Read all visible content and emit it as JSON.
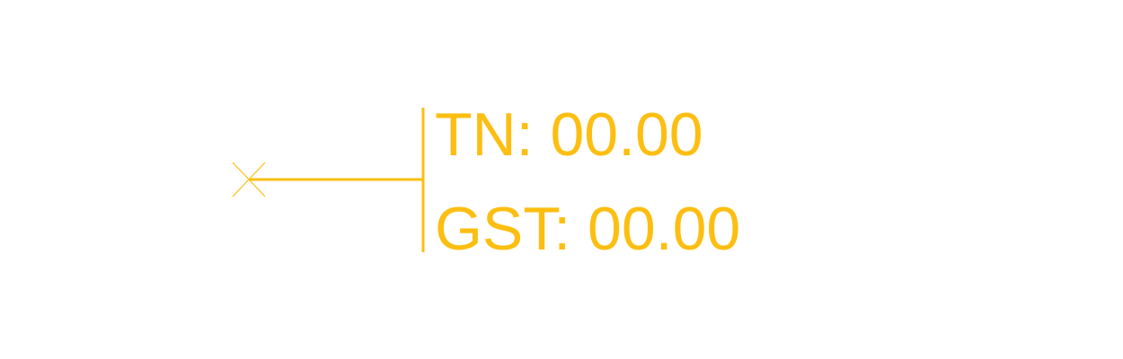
{
  "colors": {
    "annotation": "#FCBE11"
  },
  "icons": {
    "marker": "cross-marker-icon"
  },
  "labels": {
    "tn": {
      "prefix": "TN:",
      "value": "00.00"
    },
    "gst": {
      "prefix": "GST:",
      "value": "00.00"
    }
  }
}
